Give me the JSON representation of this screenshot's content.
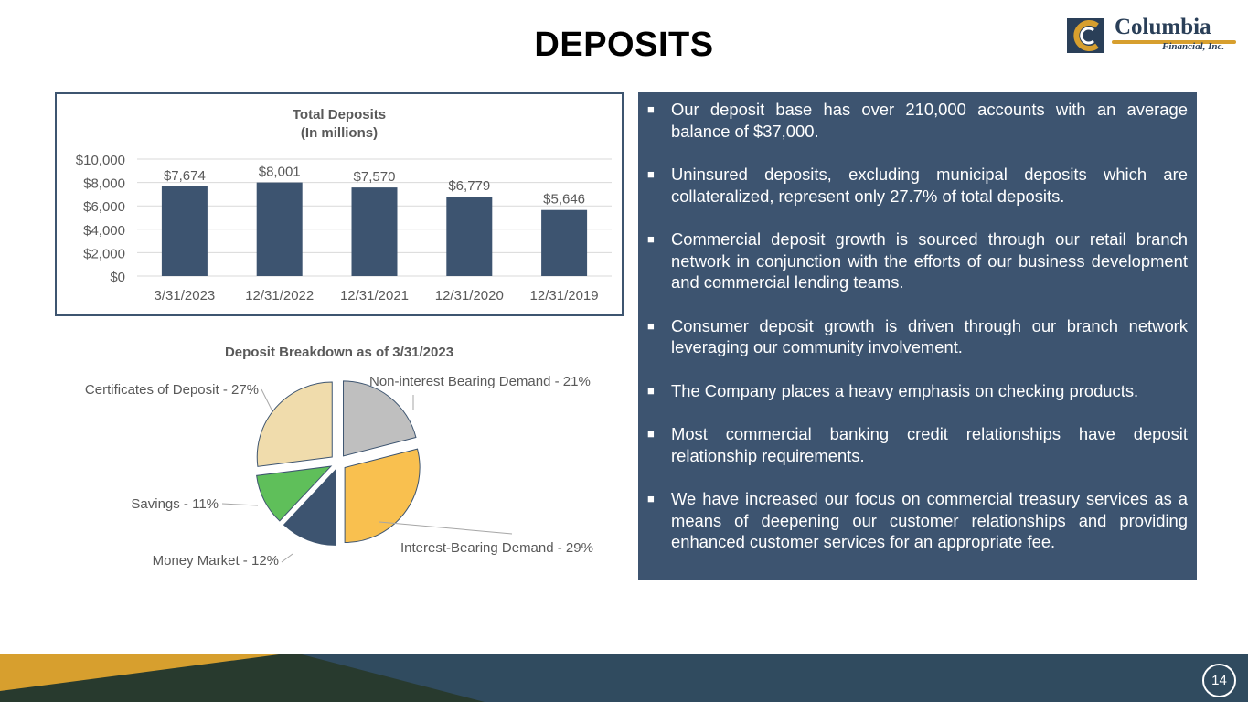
{
  "page": {
    "title": "DEPOSITS",
    "page_number": "14"
  },
  "logo": {
    "name": "Columbia",
    "subtitle": "Financial, Inc."
  },
  "colors": {
    "navy": "#3d5470",
    "gold": "#d79f2e",
    "dark_green": "#283a2e",
    "slate_blue": "#304b5f"
  },
  "chart_data": [
    {
      "type": "bar",
      "title": "Total Deposits",
      "subtitle": "(In millions)",
      "categories": [
        "3/31/2023",
        "12/31/2022",
        "12/31/2021",
        "12/31/2020",
        "12/31/2019"
      ],
      "values": [
        7674,
        8001,
        7570,
        6779,
        5646
      ],
      "data_labels": [
        "$7,674",
        "$8,001",
        "$7,570",
        "$6,779",
        "$5,646"
      ],
      "ylim": [
        0,
        10000
      ],
      "yticks": [
        0,
        2000,
        4000,
        6000,
        8000,
        10000
      ],
      "ytick_labels": [
        "$0",
        "$2,000",
        "$4,000",
        "$6,000",
        "$8,000",
        "$10,000"
      ],
      "grid": true,
      "bar_color": "#3d5470"
    },
    {
      "type": "pie",
      "title": "Deposit Breakdown as of 3/31/2023",
      "slices": [
        {
          "label": "Non-interest Bearing Demand - 21%",
          "value": 21,
          "color": "#bfbfbf"
        },
        {
          "label": "Interest-Bearing Demand - 29%",
          "value": 29,
          "color": "#f9c04f"
        },
        {
          "label": "Money Market - 12%",
          "value": 12,
          "color": "#3d5470"
        },
        {
          "label": "Savings - 11%",
          "value": 11,
          "color": "#5fbf5a"
        },
        {
          "label": "Certificates of Deposit - 27%",
          "value": 27,
          "color": "#f0dcac"
        }
      ]
    }
  ],
  "bullets": [
    "Our deposit base has over 210,000 accounts with an average balance of $37,000.",
    "Uninsured deposits, excluding municipal deposits which are collateralized, represent only 27.7% of total deposits.",
    "Commercial deposit growth is sourced through our retail branch network in conjunction with the efforts of our business development and commercial lending teams.",
    "Consumer deposit growth is driven through our branch network leveraging our community  involvement.",
    "The Company places a heavy emphasis on checking products.",
    "Most commercial banking credit relationships have deposit relationship requirements.",
    "We have increased our focus on commercial treasury services as a means of deepening our customer relationships and providing enhanced customer services for an appropriate fee."
  ],
  "bullet_marker": "■"
}
